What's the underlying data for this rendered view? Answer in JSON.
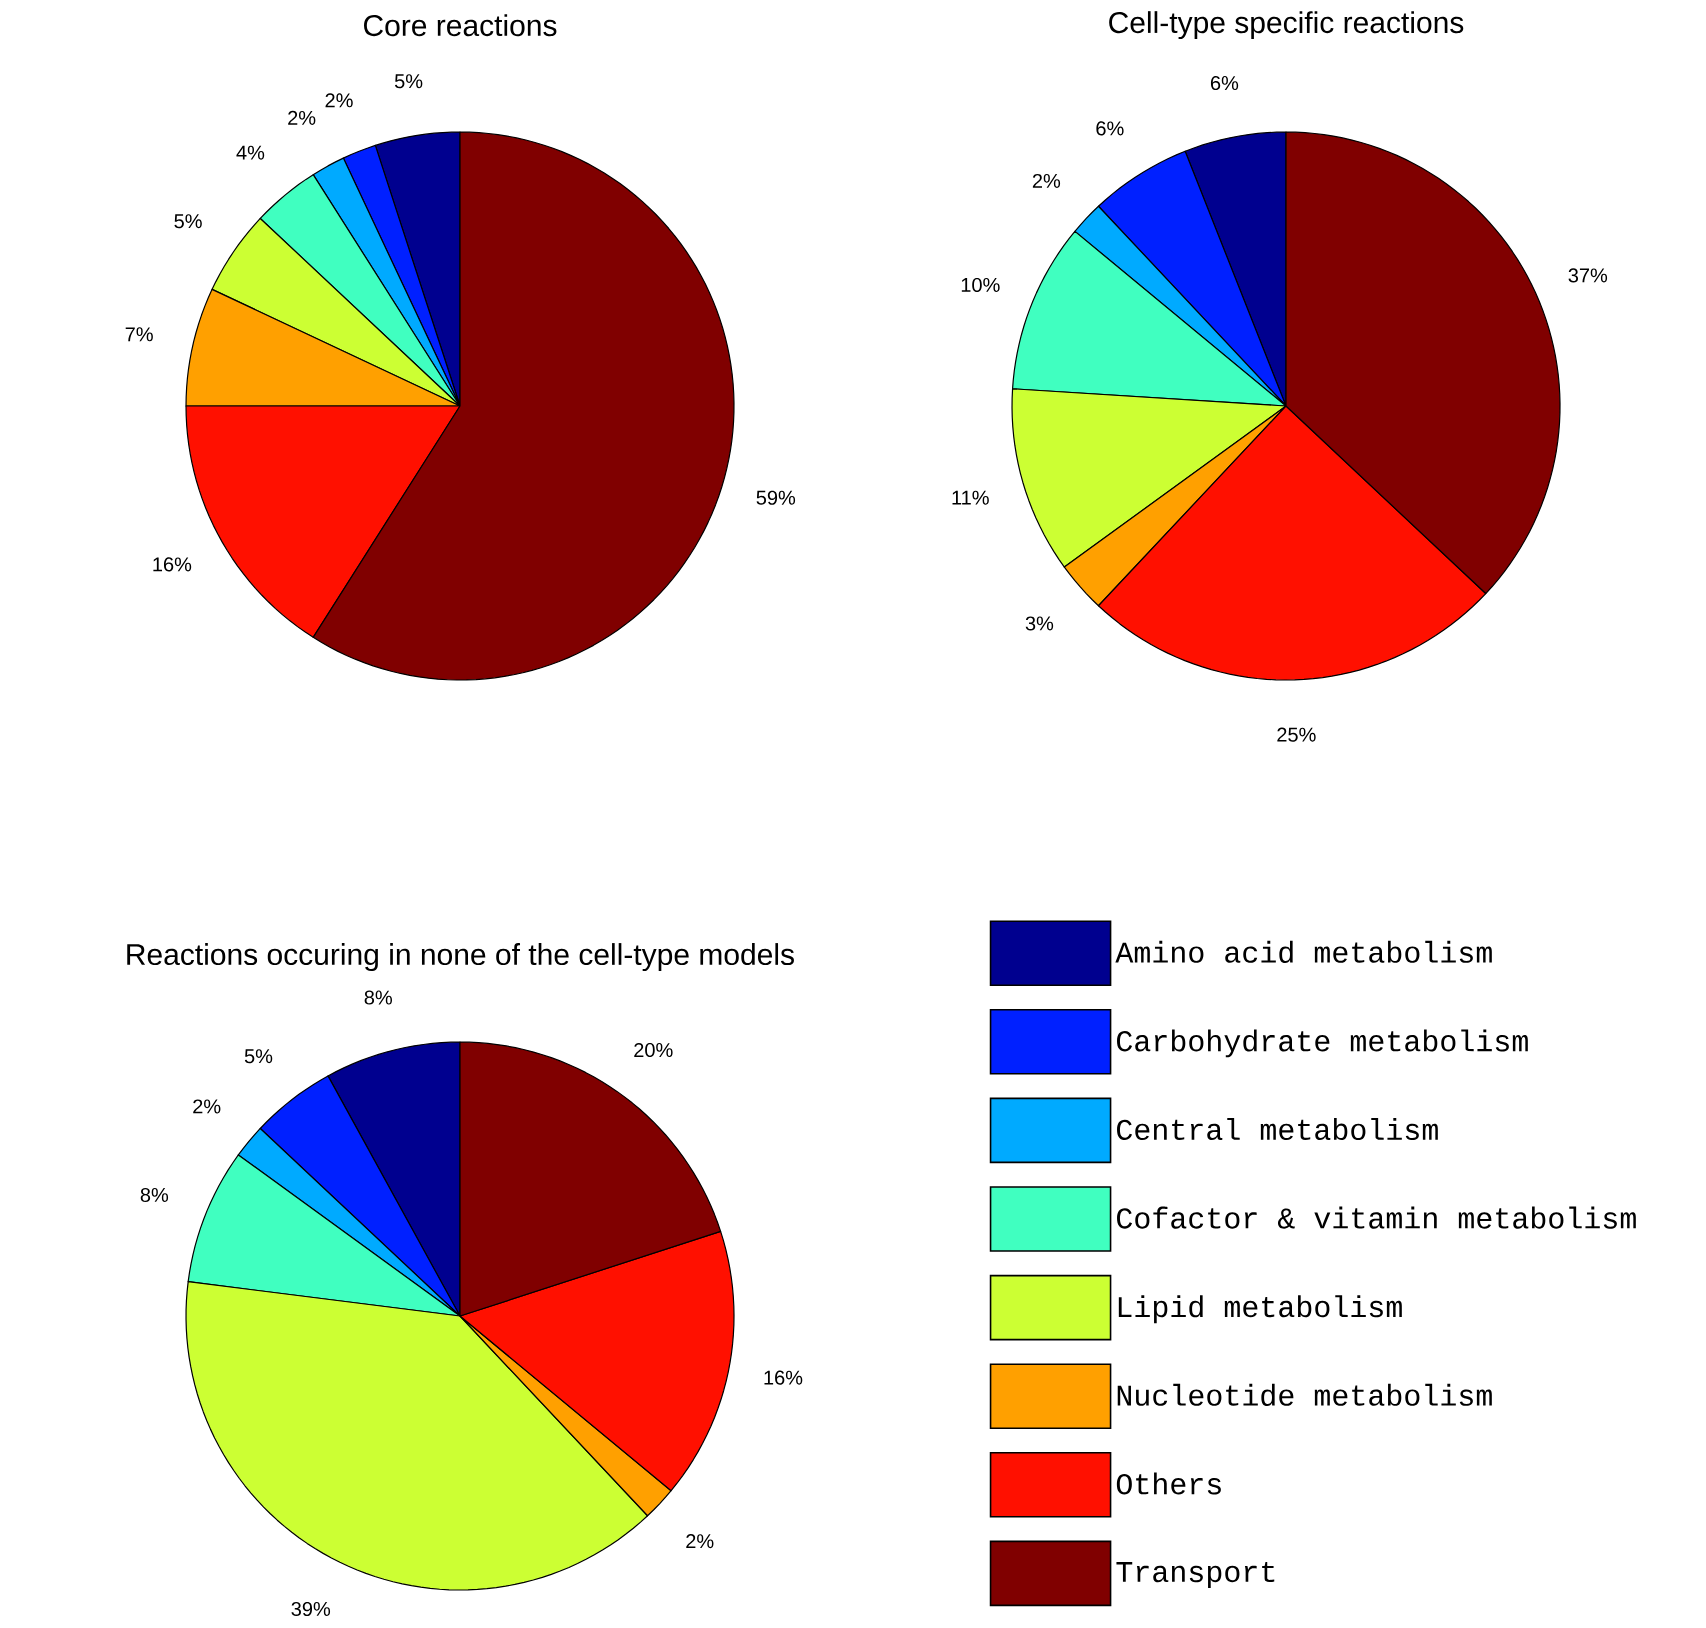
{
  "chart_data": [
    {
      "type": "pie",
      "title": "Core reactions",
      "categories": [
        null,
        null,
        null,
        null,
        null,
        null,
        null,
        null
      ],
      "values": [
        5,
        2,
        2,
        4,
        5,
        7,
        16,
        59
      ],
      "value_labels": [
        "5%",
        "2%",
        "2%",
        "4%",
        "5%",
        "7%",
        "16%",
        "59%"
      ],
      "colors": [
        "#00008f",
        "#0020ff",
        "#00aaff",
        "#40ffc0",
        "#ccff33",
        "#ffa000",
        "#ff1000",
        "#800000"
      ]
    },
    {
      "type": "pie",
      "title": "Cell-type specific reactions",
      "categories": [
        null,
        null,
        null,
        null,
        null,
        null,
        null,
        null
      ],
      "values": [
        6,
        6,
        2,
        10,
        11,
        3,
        25,
        37
      ],
      "value_labels": [
        "6%",
        "6%",
        "2%",
        "10%",
        "11%",
        "3%",
        "25%",
        "37%"
      ],
      "colors": [
        "#00008f",
        "#0020ff",
        "#00aaff",
        "#40ffc0",
        "#ccff33",
        "#ffa000",
        "#ff1000",
        "#800000"
      ]
    },
    {
      "type": "pie",
      "title": "Reactions occuring in none of the cell-type models",
      "categories": [
        "Amino acid metabolism",
        "Carbohydrate metabolism",
        "Central metabolism",
        "Cofactor & vitamin metabolism",
        "Lipid metabolism",
        "Nucleotide metabolism",
        "Others",
        "Transport"
      ],
      "values": [
        8,
        5,
        2,
        8,
        39,
        2,
        16,
        20
      ],
      "value_labels": [
        "8%",
        "5%",
        "2%",
        "8%",
        "39%",
        "2%",
        "16%",
        "20%"
      ],
      "colors": [
        "#00008f",
        "#0020ff",
        "#00aaff",
        "#40ffc0",
        "#ccff33",
        "#ffa000",
        "#ff1000",
        "#800000"
      ],
      "legend": "right"
    }
  ]
}
